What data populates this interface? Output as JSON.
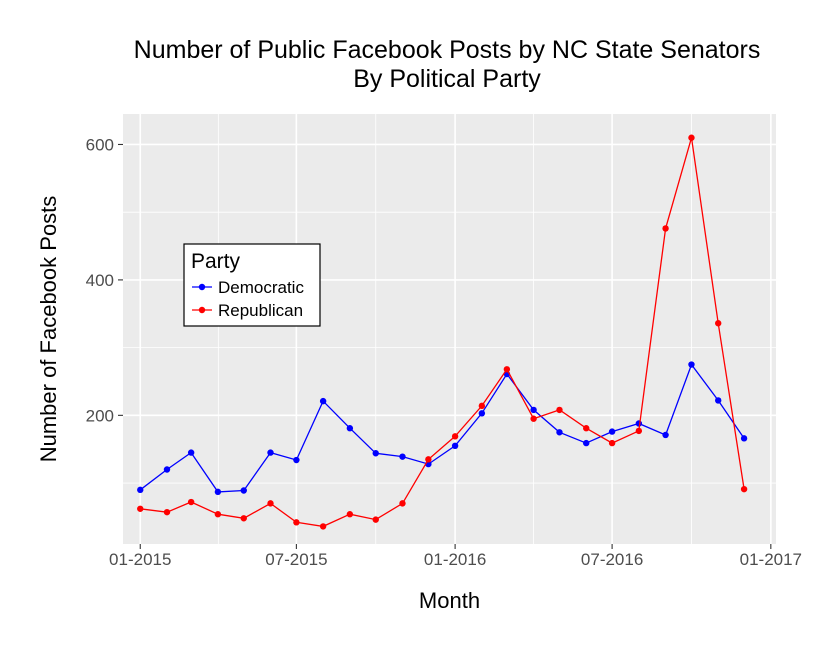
{
  "chart_data": {
    "type": "line",
    "title": [
      "Number of Public Facebook Posts by NC State Senators",
      "By Political Party"
    ],
    "xlabel": "Month",
    "ylabel": "Number of Facebook Posts",
    "x": [
      "2015-01",
      "2015-02",
      "2015-03",
      "2015-04",
      "2015-05",
      "2015-06",
      "2015-07",
      "2015-08",
      "2015-09",
      "2015-10",
      "2015-11",
      "2015-12",
      "2016-01",
      "2016-02",
      "2016-03",
      "2016-04",
      "2016-05",
      "2016-06",
      "2016-07",
      "2016-08",
      "2016-09",
      "2016-10",
      "2016-11",
      "2016-12"
    ],
    "xticks": [
      {
        "value": "2015-01",
        "label": "01-2015"
      },
      {
        "value": "2015-07",
        "label": "07-2015"
      },
      {
        "value": "2016-01",
        "label": "01-2016"
      },
      {
        "value": "2016-07",
        "label": "07-2016"
      },
      {
        "value": "2017-01",
        "label": "01-2017"
      }
    ],
    "yticks": [
      200,
      400,
      600
    ],
    "ylim": [
      10,
      645
    ],
    "xlim": [
      "2014-12-12",
      "2017-01-07"
    ],
    "grid": true,
    "background": "#ebebeb",
    "legend": {
      "title": "Party",
      "placement": "left-center"
    },
    "series": [
      {
        "name": "Democratic",
        "color": "#0000ff",
        "values": [
          90,
          120,
          145,
          87,
          89,
          145,
          134,
          221,
          181,
          144,
          139,
          128,
          155,
          203,
          261,
          208,
          175,
          159,
          176,
          188,
          171,
          275,
          222,
          166
        ]
      },
      {
        "name": "Republican",
        "color": "#ff0000",
        "values": [
          62,
          57,
          72,
          54,
          48,
          70,
          42,
          36,
          54,
          46,
          70,
          135,
          169,
          214,
          268,
          195,
          208,
          181,
          159,
          177,
          476,
          610,
          336,
          91
        ]
      }
    ]
  }
}
